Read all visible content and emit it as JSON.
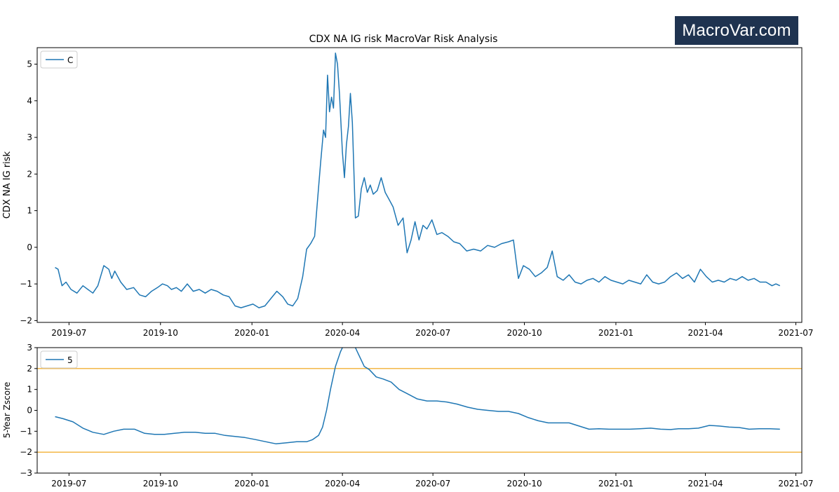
{
  "brand": {
    "logo_text": "MacroVar.com"
  },
  "colors": {
    "series": "#1f77b4",
    "threshold": "#f2b134",
    "axis": "#000000",
    "brand_bg": "#1f3350"
  },
  "chart_data": [
    {
      "type": "line",
      "title": "CDX NA IG risk MacroVar Risk Analysis",
      "xlabel": "",
      "ylabel": "CDX NA IG risk",
      "ylim": [
        -2.05,
        5.45
      ],
      "xlim": [
        "2019-05-30",
        "2021-07-07"
      ],
      "yticks": [
        -2,
        -1,
        0,
        1,
        2,
        3,
        4,
        5
      ],
      "xticks": [
        "2019-07",
        "2019-10",
        "2020-01",
        "2020-04",
        "2020-07",
        "2020-10",
        "2021-01",
        "2021-04",
        "2021-07"
      ],
      "grid": false,
      "legend": {
        "position": "top-left",
        "entries": [
          "C"
        ]
      },
      "series": [
        {
          "name": "C",
          "x": [
            "2019-06-17",
            "2019-06-20",
            "2019-06-24",
            "2019-06-28",
            "2019-07-03",
            "2019-07-09",
            "2019-07-15",
            "2019-07-20",
            "2019-07-25",
            "2019-07-30",
            "2019-08-05",
            "2019-08-10",
            "2019-08-13",
            "2019-08-16",
            "2019-08-22",
            "2019-08-28",
            "2019-09-04",
            "2019-09-10",
            "2019-09-16",
            "2019-09-22",
            "2019-09-28",
            "2019-10-03",
            "2019-10-08",
            "2019-10-12",
            "2019-10-17",
            "2019-10-22",
            "2019-10-28",
            "2019-11-03",
            "2019-11-09",
            "2019-11-15",
            "2019-11-21",
            "2019-11-27",
            "2019-12-03",
            "2019-12-09",
            "2019-12-15",
            "2019-12-21",
            "2019-12-27",
            "2020-01-02",
            "2020-01-08",
            "2020-01-14",
            "2020-01-20",
            "2020-01-26",
            "2020-02-01",
            "2020-02-06",
            "2020-02-11",
            "2020-02-16",
            "2020-02-21",
            "2020-02-25",
            "2020-02-29",
            "2020-03-04",
            "2020-03-07",
            "2020-03-10",
            "2020-03-13",
            "2020-03-15",
            "2020-03-17",
            "2020-03-19",
            "2020-03-21",
            "2020-03-23",
            "2020-03-25",
            "2020-03-27",
            "2020-03-29",
            "2020-04-01",
            "2020-04-03",
            "2020-04-05",
            "2020-04-07",
            "2020-04-09",
            "2020-04-11",
            "2020-04-14",
            "2020-04-17",
            "2020-04-20",
            "2020-04-23",
            "2020-04-26",
            "2020-04-29",
            "2020-05-02",
            "2020-05-06",
            "2020-05-10",
            "2020-05-14",
            "2020-05-18",
            "2020-05-22",
            "2020-05-27",
            "2020-06-01",
            "2020-06-05",
            "2020-06-09",
            "2020-06-13",
            "2020-06-17",
            "2020-06-21",
            "2020-06-25",
            "2020-06-30",
            "2020-07-05",
            "2020-07-10",
            "2020-07-16",
            "2020-07-22",
            "2020-07-28",
            "2020-08-04",
            "2020-08-11",
            "2020-08-18",
            "2020-08-25",
            "2020-09-01",
            "2020-09-08",
            "2020-09-15",
            "2020-09-20",
            "2020-09-25",
            "2020-09-30",
            "2020-10-06",
            "2020-10-12",
            "2020-10-18",
            "2020-10-24",
            "2020-10-29",
            "2020-11-03",
            "2020-11-09",
            "2020-11-15",
            "2020-11-21",
            "2020-11-27",
            "2020-12-03",
            "2020-12-09",
            "2020-12-15",
            "2020-12-21",
            "2020-12-27",
            "2021-01-02",
            "2021-01-08",
            "2021-01-14",
            "2021-01-20",
            "2021-01-26",
            "2021-02-01",
            "2021-02-07",
            "2021-02-13",
            "2021-02-19",
            "2021-02-25",
            "2021-03-03",
            "2021-03-09",
            "2021-03-15",
            "2021-03-21",
            "2021-03-27",
            "2021-04-02",
            "2021-04-08",
            "2021-04-14",
            "2021-04-20",
            "2021-04-26",
            "2021-05-02",
            "2021-05-08",
            "2021-05-14",
            "2021-05-20",
            "2021-05-26",
            "2021-06-01",
            "2021-06-07",
            "2021-06-11",
            "2021-06-15"
          ],
          "values": [
            -0.55,
            -0.6,
            -1.05,
            -0.95,
            -1.15,
            -1.25,
            -1.05,
            -1.15,
            -1.25,
            -1.05,
            -0.5,
            -0.6,
            -0.85,
            -0.65,
            -0.95,
            -1.15,
            -1.1,
            -1.3,
            -1.35,
            -1.2,
            -1.1,
            -1.0,
            -1.05,
            -1.15,
            -1.1,
            -1.2,
            -1.0,
            -1.2,
            -1.15,
            -1.25,
            -1.15,
            -1.2,
            -1.3,
            -1.35,
            -1.6,
            -1.65,
            -1.6,
            -1.55,
            -1.65,
            -1.6,
            -1.4,
            -1.2,
            -1.35,
            -1.55,
            -1.6,
            -1.4,
            -0.8,
            -0.05,
            0.1,
            0.3,
            1.3,
            2.3,
            3.2,
            3.0,
            4.7,
            3.7,
            4.1,
            3.8,
            5.3,
            5.0,
            4.2,
            2.6,
            1.9,
            2.8,
            3.3,
            4.2,
            3.4,
            0.8,
            0.85,
            1.6,
            1.9,
            1.5,
            1.7,
            1.45,
            1.55,
            1.9,
            1.5,
            1.3,
            1.1,
            0.6,
            0.8,
            -0.15,
            0.2,
            0.7,
            0.2,
            0.6,
            0.5,
            0.75,
            0.35,
            0.4,
            0.3,
            0.15,
            0.1,
            -0.1,
            -0.05,
            -0.1,
            0.05,
            0.0,
            0.1,
            0.15,
            0.2,
            -0.85,
            -0.5,
            -0.6,
            -0.8,
            -0.7,
            -0.55,
            -0.1,
            -0.8,
            -0.9,
            -0.75,
            -0.95,
            -1.0,
            -0.9,
            -0.85,
            -0.95,
            -0.8,
            -0.9,
            -0.95,
            -1.0,
            -0.9,
            -0.95,
            -1.0,
            -0.75,
            -0.95,
            -1.0,
            -0.95,
            -0.8,
            -0.7,
            -0.85,
            -0.75,
            -0.95,
            -0.6,
            -0.8,
            -0.95,
            -0.9,
            -0.95,
            -0.85,
            -0.9,
            -0.8,
            -0.9,
            -0.85,
            -0.95,
            -0.95,
            -1.05,
            -1.0,
            -1.05
          ]
        }
      ]
    },
    {
      "type": "line",
      "title": "",
      "xlabel": "",
      "ylabel": "5-Year Zscore",
      "ylim": [
        -3,
        3
      ],
      "xlim": [
        "2019-05-30",
        "2021-07-07"
      ],
      "yticks": [
        -3,
        -2,
        -1,
        0,
        1,
        2,
        3
      ],
      "xticks": [
        "2019-07",
        "2019-10",
        "2020-01",
        "2020-04",
        "2020-07",
        "2020-10",
        "2021-01",
        "2021-04",
        "2021-07"
      ],
      "grid": false,
      "legend": {
        "position": "top-left",
        "entries": [
          "5"
        ]
      },
      "hlines": [
        2,
        -2
      ],
      "series": [
        {
          "name": "5",
          "x": [
            "2019-06-17",
            "2019-06-25",
            "2019-07-05",
            "2019-07-15",
            "2019-07-25",
            "2019-08-05",
            "2019-08-15",
            "2019-08-25",
            "2019-09-05",
            "2019-09-15",
            "2019-09-25",
            "2019-10-05",
            "2019-10-15",
            "2019-10-25",
            "2019-11-05",
            "2019-11-15",
            "2019-11-25",
            "2019-12-05",
            "2019-12-15",
            "2019-12-25",
            "2020-01-05",
            "2020-01-15",
            "2020-01-25",
            "2020-02-05",
            "2020-02-15",
            "2020-02-25",
            "2020-03-02",
            "2020-03-08",
            "2020-03-12",
            "2020-03-16",
            "2020-03-20",
            "2020-03-25",
            "2020-03-30",
            "2020-04-03",
            "2020-04-08",
            "2020-04-13",
            "2020-04-18",
            "2020-04-23",
            "2020-04-28",
            "2020-05-05",
            "2020-05-12",
            "2020-05-20",
            "2020-05-28",
            "2020-06-05",
            "2020-06-15",
            "2020-06-25",
            "2020-07-05",
            "2020-07-15",
            "2020-07-25",
            "2020-08-05",
            "2020-08-15",
            "2020-08-25",
            "2020-09-05",
            "2020-09-15",
            "2020-09-25",
            "2020-10-05",
            "2020-10-15",
            "2020-10-25",
            "2020-11-05",
            "2020-11-15",
            "2020-11-25",
            "2020-12-05",
            "2020-12-15",
            "2020-12-25",
            "2021-01-05",
            "2021-01-15",
            "2021-01-25",
            "2021-02-05",
            "2021-02-15",
            "2021-02-25",
            "2021-03-05",
            "2021-03-15",
            "2021-03-25",
            "2021-04-05",
            "2021-04-15",
            "2021-04-25",
            "2021-05-05",
            "2021-05-15",
            "2021-05-25",
            "2021-06-05",
            "2021-06-15"
          ],
          "values": [
            -0.3,
            -0.4,
            -0.55,
            -0.85,
            -1.05,
            -1.15,
            -1.0,
            -0.9,
            -0.9,
            -1.1,
            -1.15,
            -1.15,
            -1.1,
            -1.05,
            -1.05,
            -1.1,
            -1.1,
            -1.2,
            -1.25,
            -1.3,
            -1.4,
            -1.5,
            -1.6,
            -1.55,
            -1.5,
            -1.5,
            -1.4,
            -1.2,
            -0.8,
            0.0,
            1.0,
            2.1,
            2.8,
            3.2,
            3.4,
            3.1,
            2.6,
            2.1,
            1.95,
            1.6,
            1.5,
            1.35,
            1.0,
            0.8,
            0.55,
            0.45,
            0.45,
            0.4,
            0.3,
            0.15,
            0.05,
            0.0,
            -0.05,
            -0.05,
            -0.15,
            -0.35,
            -0.5,
            -0.6,
            -0.6,
            -0.6,
            -0.75,
            -0.9,
            -0.88,
            -0.9,
            -0.9,
            -0.9,
            -0.88,
            -0.85,
            -0.9,
            -0.92,
            -0.88,
            -0.88,
            -0.85,
            -0.72,
            -0.75,
            -0.8,
            -0.82,
            -0.9,
            -0.88,
            -0.88,
            -0.9
          ]
        }
      ]
    }
  ]
}
